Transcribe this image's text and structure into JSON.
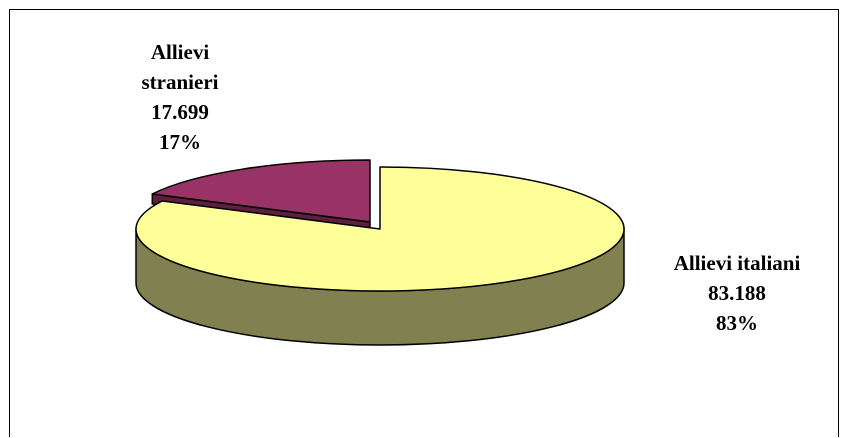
{
  "chart_data": {
    "type": "pie",
    "variant": "3d-exploded",
    "slices": [
      {
        "label_lines": [
          "Allievi italiani"
        ],
        "value": 83188,
        "value_label": "83.188",
        "percent_label": "83%",
        "color": "#FFFF99",
        "side_color": "#808050"
      },
      {
        "label_lines": [
          "Allievi",
          "stranieri"
        ],
        "value": 17699,
        "value_label": "17.699",
        "percent_label": "17%",
        "color": "#993366",
        "side_color": "#5c1f3d"
      }
    ]
  }
}
